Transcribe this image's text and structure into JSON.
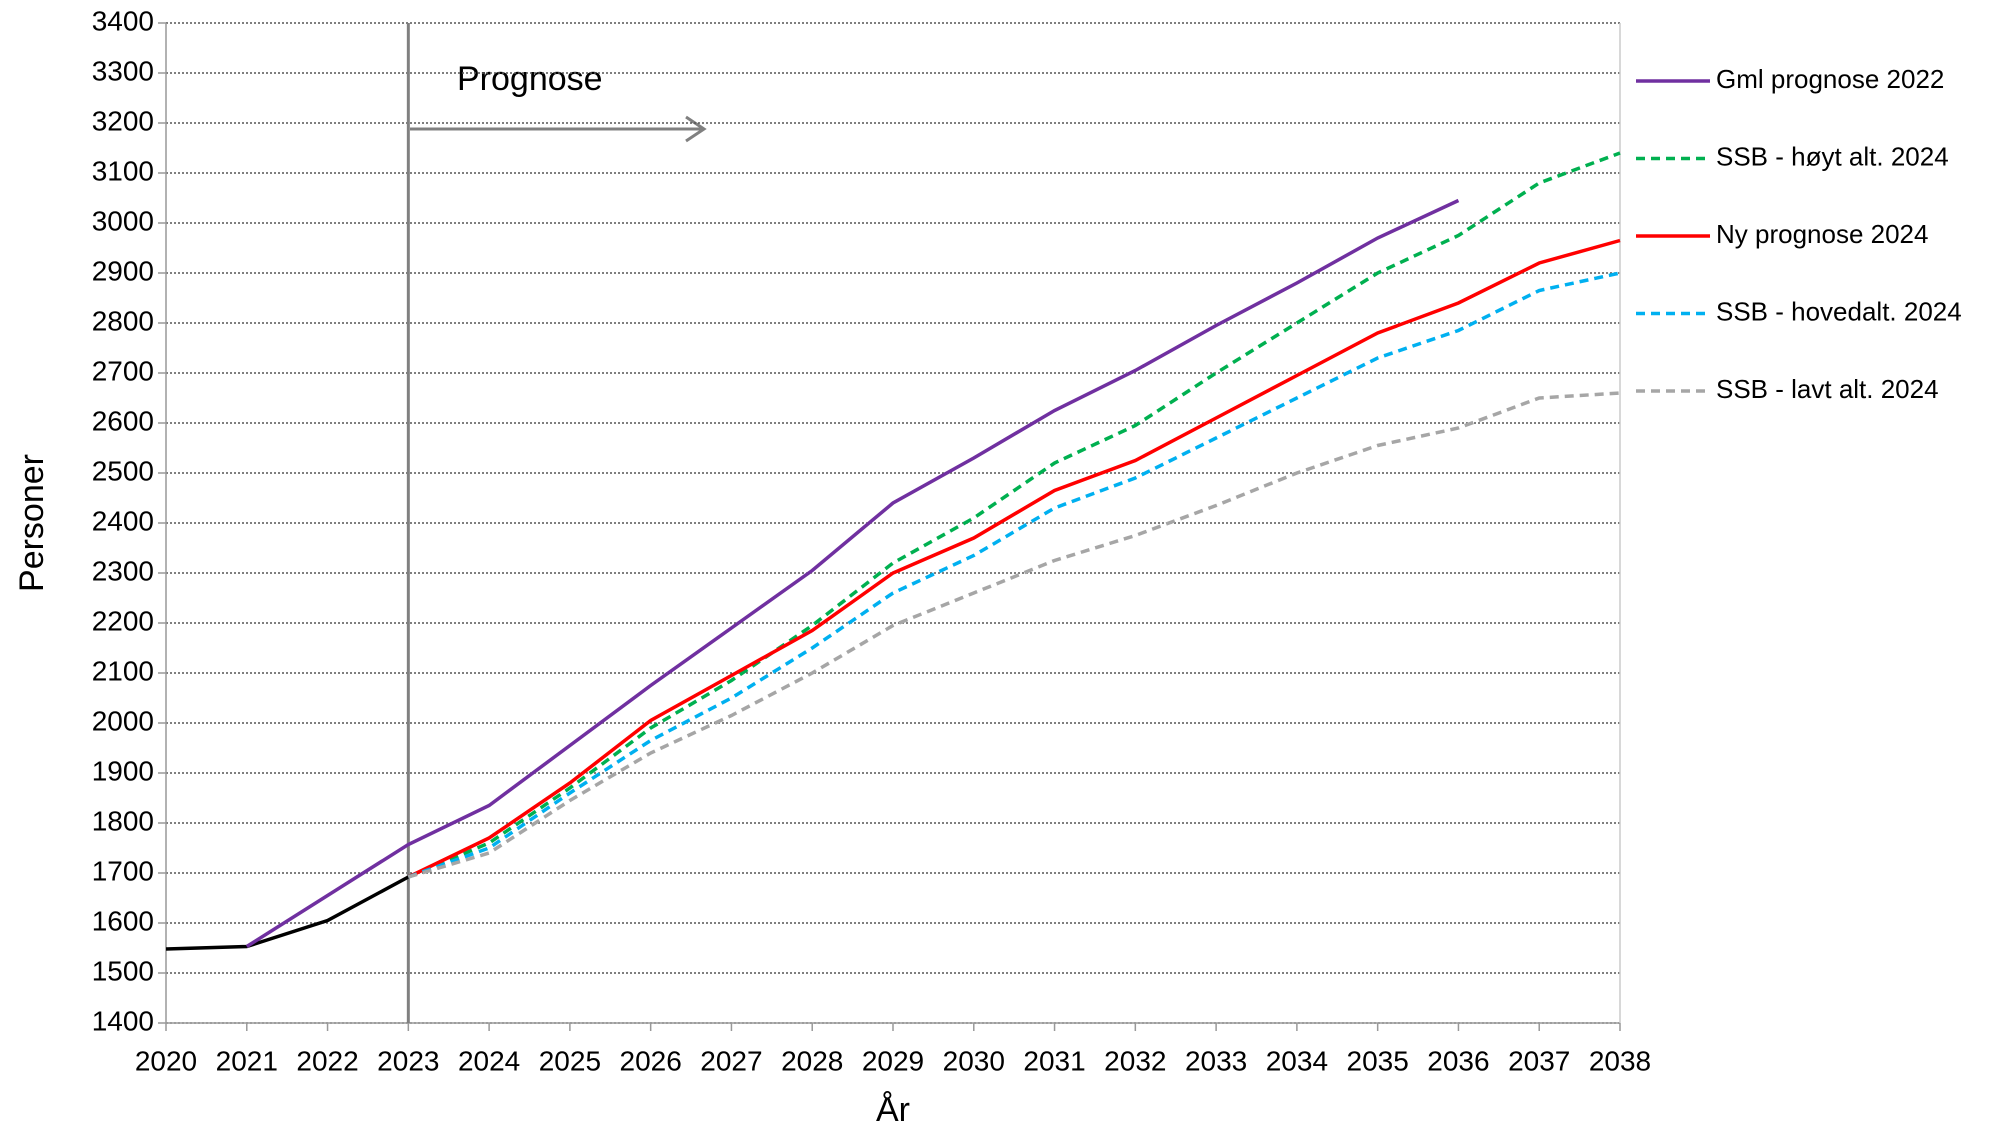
{
  "chart_data": {
    "type": "line",
    "annotation": "Prognose",
    "vline": 2023,
    "xlabel": "År",
    "ylabel": "Personer",
    "x": [
      2020,
      2021,
      2022,
      2023,
      2024,
      2025,
      2026,
      2027,
      2028,
      2029,
      2030,
      2031,
      2032,
      2033,
      2034,
      2035,
      2036,
      2037,
      2038
    ],
    "xlim": [
      2020,
      2038
    ],
    "xticks": [
      2020,
      2021,
      2022,
      2023,
      2024,
      2025,
      2026,
      2027,
      2028,
      2029,
      2030,
      2031,
      2032,
      2033,
      2034,
      2035,
      2036,
      2037,
      2038
    ],
    "ylim": [
      1400,
      3400
    ],
    "yticks": [
      1400,
      1500,
      1600,
      1700,
      1800,
      1900,
      2000,
      2100,
      2200,
      2300,
      2400,
      2500,
      2600,
      2700,
      2800,
      2900,
      3000,
      3100,
      3200,
      3300,
      3400
    ],
    "grid": true,
    "legend": "right",
    "series": [
      {
        "color": "#000000",
        "dash": false,
        "values": [
          1548,
          1553,
          1605,
          1692,
          null,
          null,
          null,
          null,
          null,
          null,
          null,
          null,
          null,
          null,
          null,
          null,
          null,
          null,
          null
        ]
      },
      {
        "name": "Gml prognose 2022",
        "color": "#7030a0",
        "dash": false,
        "values": [
          null,
          1553,
          1655,
          1757,
          1835,
          1955,
          2075,
          2190,
          2305,
          2440,
          2530,
          2625,
          2705,
          2795,
          2880,
          2970,
          3045,
          null,
          null
        ]
      },
      {
        "name": "SSB - høyt alt. 2024",
        "color": "#00b050",
        "dash": true,
        "values": [
          null,
          null,
          null,
          1692,
          1760,
          1870,
          1990,
          2085,
          2195,
          2320,
          2410,
          2520,
          2595,
          2700,
          2800,
          2900,
          2975,
          3080,
          3140
        ]
      },
      {
        "name": "Ny prognose 2024",
        "color": "#ff0000",
        "dash": false,
        "values": [
          null,
          null,
          null,
          1692,
          1770,
          1880,
          2005,
          2095,
          2185,
          2300,
          2370,
          2465,
          2525,
          2610,
          2695,
          2780,
          2840,
          2920,
          2965
        ]
      },
      {
        "name": "SSB - hovedalt. 2024",
        "color": "#00b0f0",
        "dash": true,
        "values": [
          null,
          null,
          null,
          1692,
          1750,
          1860,
          1965,
          2050,
          2150,
          2260,
          2335,
          2430,
          2490,
          2570,
          2650,
          2730,
          2785,
          2865,
          2900
        ]
      },
      {
        "name": "SSB - lavt alt. 2024",
        "color": "#a6a6a6",
        "dash": true,
        "values": [
          null,
          null,
          null,
          1692,
          1740,
          1845,
          1940,
          2015,
          2100,
          2195,
          2260,
          2325,
          2375,
          2435,
          2500,
          2555,
          2590,
          2650,
          2660
        ]
      }
    ]
  }
}
